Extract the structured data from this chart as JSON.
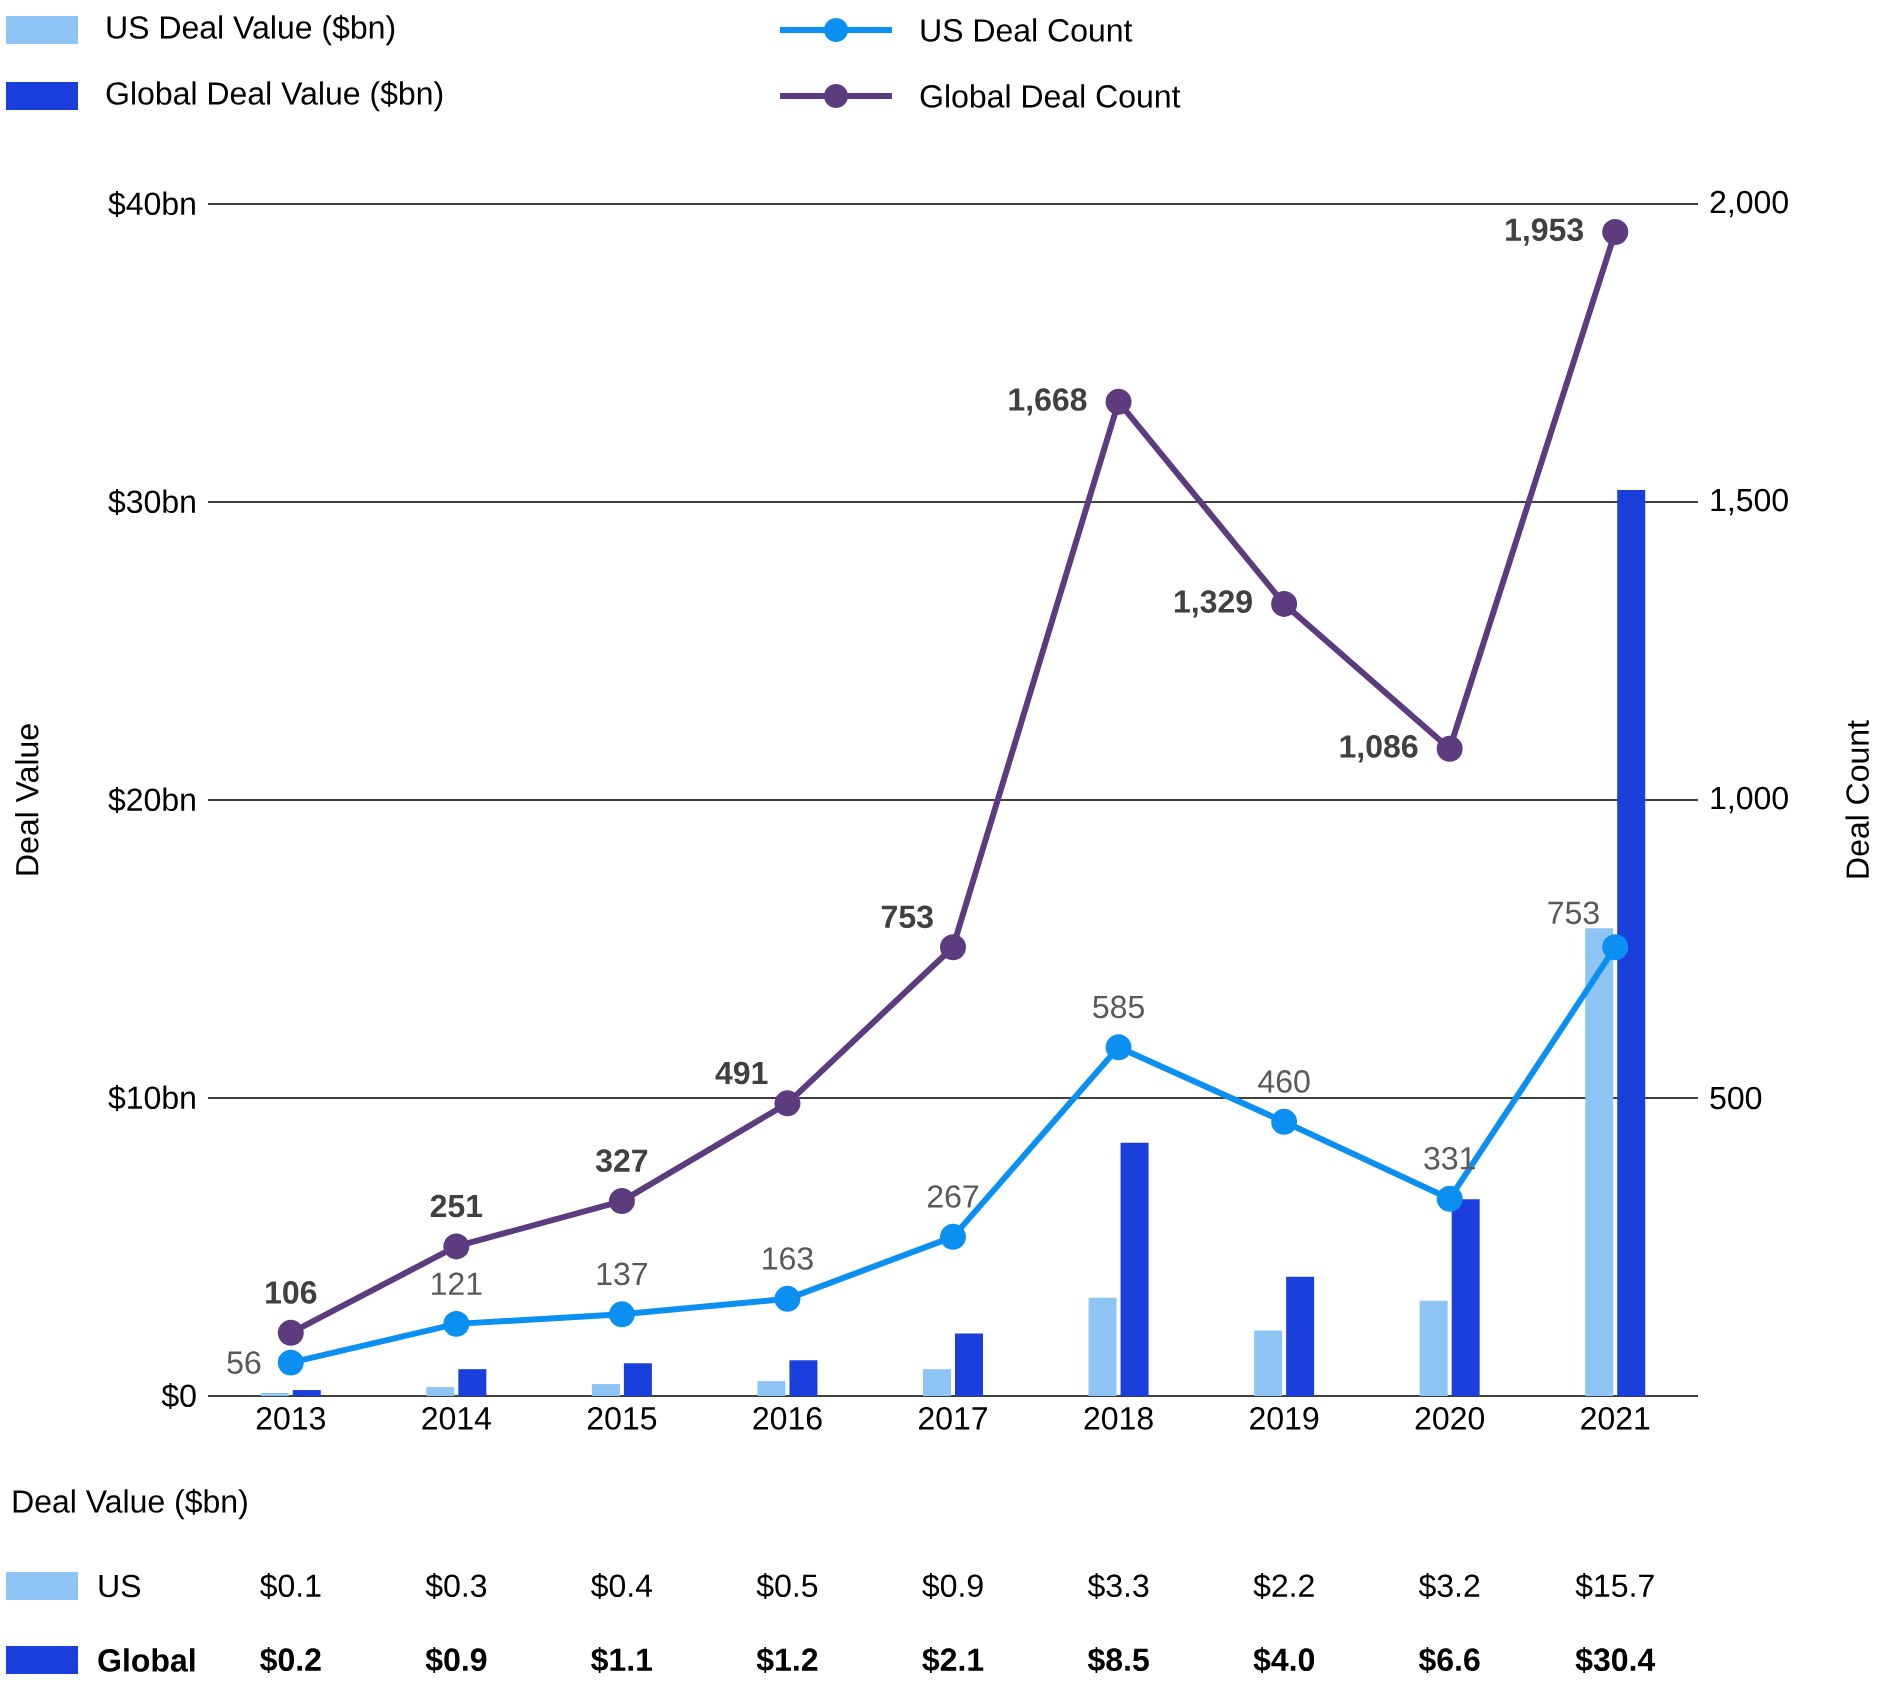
{
  "chart_data": {
    "type": "bar",
    "categories": [
      "2013",
      "2014",
      "2015",
      "2016",
      "2017",
      "2018",
      "2019",
      "2020",
      "2021"
    ],
    "ylabel": "Deal Value",
    "y2label": "Deal Count",
    "ylim": [
      0,
      40
    ],
    "yticks": [
      {
        "value": 0,
        "label": "$0"
      },
      {
        "value": 10,
        "label": "$10bn"
      },
      {
        "value": 20,
        "label": "$20bn"
      },
      {
        "value": 30,
        "label": "$30bn"
      },
      {
        "value": 40,
        "label": "$40bn"
      }
    ],
    "y2lim": [
      0,
      2000
    ],
    "y2ticks": [
      {
        "value": 500,
        "label": "500"
      },
      {
        "value": 1000,
        "label": "1,000"
      },
      {
        "value": 1500,
        "label": "1,500"
      },
      {
        "value": 2000,
        "label": "2,000"
      }
    ],
    "grid": "y",
    "legend": "top",
    "marker": "circle",
    "annotations": [
      "Deal Value ($bn)",
      "US",
      "Global"
    ],
    "series": [
      {
        "name": "US Deal Value ($bn)",
        "color": "#8ec5f5",
        "values": [
          0.1,
          0.3,
          0.4,
          0.5,
          0.9,
          3.3,
          2.2,
          3.2,
          15.7
        ],
        "value_labels": [
          "$0.1",
          "$0.3",
          "$0.4",
          "$0.5",
          "$0.9",
          "$3.3",
          "$2.2",
          "$3.2",
          "$15.7"
        ]
      },
      {
        "name": "Global Deal Value ($bn)",
        "color": "#1b3fdc",
        "values": [
          0.2,
          0.9,
          1.1,
          1.2,
          2.1,
          8.5,
          4.0,
          6.6,
          30.4
        ],
        "value_labels": [
          "$0.2",
          "$0.9",
          "$1.1",
          "$1.2",
          "$2.1",
          "$8.5",
          "$4.0",
          "$6.6",
          "$30.4"
        ]
      },
      {
        "name": "US Deal Count",
        "type": "line",
        "axis": "y2",
        "color": "#0b90f2",
        "values": [
          56,
          121,
          137,
          163,
          267,
          585,
          460,
          331,
          753
        ],
        "value_labels": [
          "56",
          "121",
          "137",
          "163",
          "267",
          "585",
          "460",
          "331",
          "753"
        ]
      },
      {
        "name": "Global Deal Count",
        "type": "line",
        "axis": "y2",
        "color": "#5c3b7e",
        "values": [
          106,
          251,
          327,
          491,
          753,
          1668,
          1329,
          1086,
          1953
        ],
        "value_labels": [
          "106",
          "251",
          "327",
          "491",
          "753",
          "1,668",
          "1,329",
          "1,086",
          "1,953"
        ]
      }
    ]
  }
}
